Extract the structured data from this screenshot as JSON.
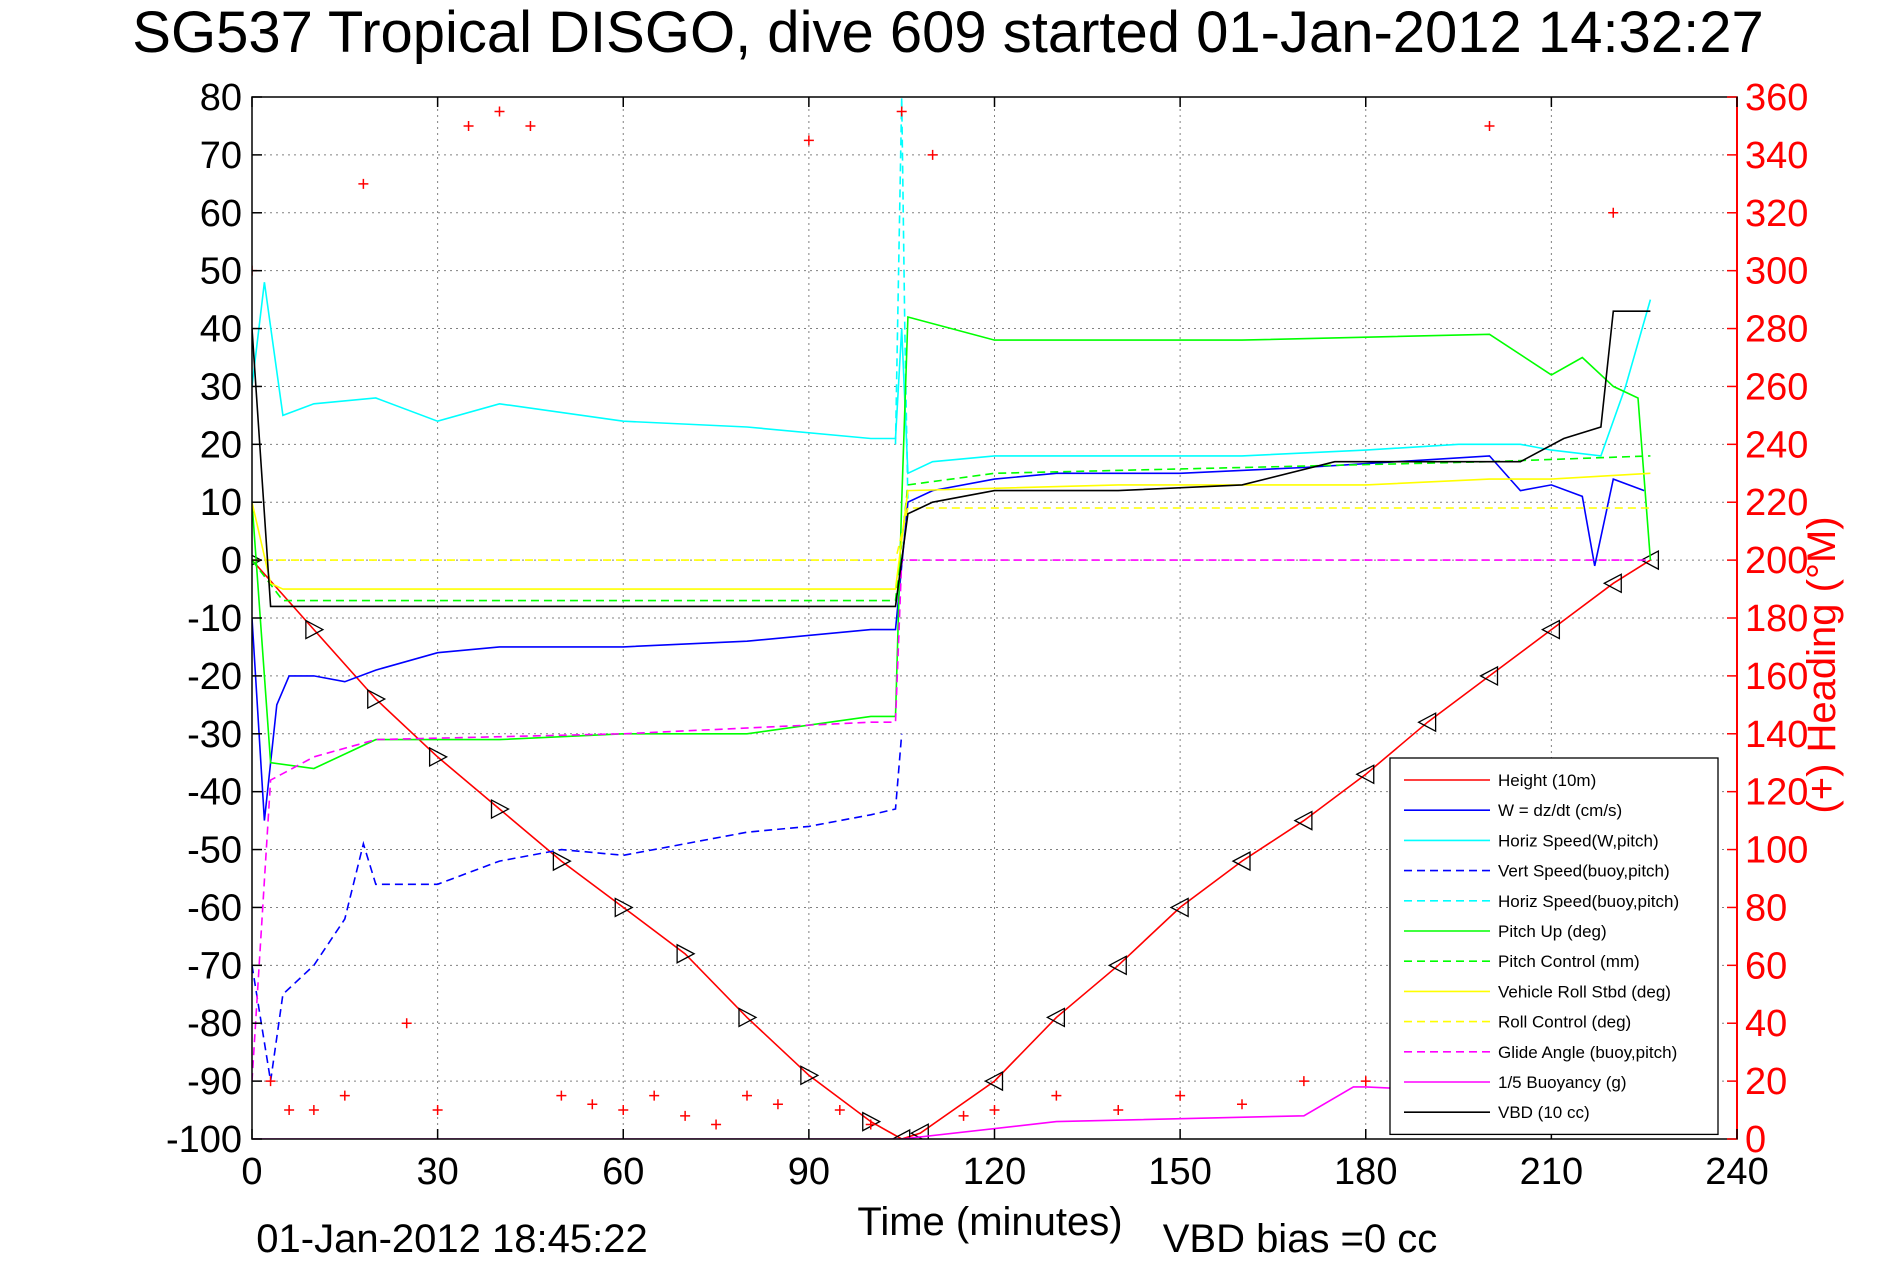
{
  "chart_data": {
    "type": "line",
    "title": "SG537 Tropical DISGO, dive 609 started 01-Jan-2012 14:32:27",
    "xlabel": "Time (minutes)",
    "ylabel": "",
    "y2label": "(+) Heading (°M)",
    "footer_left": "01-Jan-2012 18:45:22",
    "footer_right": "VBD bias =0 cc",
    "xlim": [
      0,
      240
    ],
    "ylim": [
      -100,
      80
    ],
    "y2lim": [
      0,
      360
    ],
    "xticks": [
      "0",
      "30",
      "60",
      "90",
      "120",
      "150",
      "180",
      "210",
      "240"
    ],
    "yticks": [
      "80",
      "70",
      "60",
      "50",
      "40",
      "30",
      "20",
      "10",
      "0",
      "-10",
      "-20",
      "-30",
      "-40",
      "-50",
      "-60",
      "-70",
      "-80",
      "-90",
      "-100"
    ],
    "y2ticks": [
      "360",
      "340",
      "320",
      "300",
      "280",
      "260",
      "240",
      "220",
      "200",
      "180",
      "160",
      "140",
      "120",
      "100",
      "80",
      "60",
      "40",
      "20",
      "0"
    ],
    "grid": true,
    "legend_position": "bottom-right",
    "colors": {
      "axis": "#000000",
      "right_axis": "#ff0000",
      "grid": "#808080"
    },
    "series": [
      {
        "name": "Height (10m)",
        "color": "#ff0000",
        "style": "solid",
        "x": [
          0,
          10,
          20,
          30,
          40,
          50,
          60,
          70,
          80,
          90,
          100,
          105,
          108,
          120,
          130,
          140,
          150,
          160,
          170,
          180,
          190,
          200,
          210,
          220,
          226
        ],
        "y": [
          0,
          -12,
          -24,
          -34,
          -43,
          -52,
          -60,
          -68,
          -79,
          -89,
          -97,
          -100,
          -99,
          -90,
          -79,
          -70,
          -60,
          -52,
          -45,
          -37,
          -28,
          -20,
          -12,
          -4,
          0
        ]
      },
      {
        "name": "W = dz/dt (cm/s)",
        "color": "#0000ff",
        "style": "solid",
        "x": [
          0,
          2,
          4,
          6,
          10,
          15,
          20,
          30,
          40,
          60,
          80,
          100,
          104,
          106,
          110,
          120,
          130,
          150,
          170,
          185,
          200,
          205,
          210,
          215,
          217,
          220,
          225
        ],
        "y": [
          -10,
          -45,
          -25,
          -20,
          -20,
          -21,
          -19,
          -16,
          -15,
          -15,
          -14,
          -12,
          -12,
          10,
          12,
          14,
          15,
          15,
          16,
          17,
          18,
          12,
          13,
          11,
          -1,
          14,
          12
        ]
      },
      {
        "name": "Horiz Speed(W,pitch)",
        "color": "#00ffff",
        "style": "solid",
        "x": [
          0,
          2,
          5,
          10,
          20,
          30,
          40,
          60,
          80,
          100,
          104,
          105,
          106,
          110,
          120,
          140,
          160,
          180,
          195,
          205,
          210,
          218,
          222,
          226
        ],
        "y": [
          30,
          48,
          25,
          27,
          28,
          24,
          27,
          24,
          23,
          21,
          21,
          40,
          15,
          17,
          18,
          18,
          18,
          19,
          20,
          20,
          19,
          18,
          30,
          45
        ]
      },
      {
        "name": "Vert Speed(buoy,pitch)",
        "color": "#0000ff",
        "style": "dashed",
        "x": [
          0,
          3,
          5,
          10,
          15,
          18,
          20,
          30,
          40,
          50,
          60,
          80,
          90,
          100,
          104,
          105
        ],
        "y": [
          -70,
          -90,
          -75,
          -70,
          -62,
          -49,
          -56,
          -56,
          -52,
          -50,
          -51,
          -47,
          -46,
          -44,
          -43,
          -30
        ]
      },
      {
        "name": "Horiz Speed(buoy,pitch)",
        "color": "#00ffff",
        "style": "dashed",
        "x": [
          104,
          105,
          105.5,
          106
        ],
        "y": [
          20,
          80,
          40,
          10
        ]
      },
      {
        "name": "Pitch Up (deg)",
        "color": "#00ff00",
        "style": "solid",
        "x": [
          0,
          3,
          10,
          20,
          40,
          60,
          80,
          100,
          104,
          105,
          106,
          120,
          160,
          200,
          210,
          215,
          220,
          224,
          226
        ],
        "y": [
          10,
          -35,
          -36,
          -31,
          -31,
          -30,
          -30,
          -27,
          -27,
          10,
          42,
          38,
          38,
          39,
          32,
          35,
          30,
          28,
          0
        ]
      },
      {
        "name": "Pitch Control (mm)",
        "color": "#00ff00",
        "style": "dashed",
        "x": [
          0,
          5,
          20,
          60,
          100,
          104,
          106,
          120,
          160,
          200,
          226
        ],
        "y": [
          0,
          -7,
          -7,
          -7,
          -7,
          -7,
          13,
          15,
          16,
          17,
          18
        ]
      },
      {
        "name": "Vehicle Roll Stbd (deg)",
        "color": "#ffff00",
        "style": "solid",
        "x": [
          0,
          3,
          5,
          30,
          60,
          104,
          106,
          140,
          180,
          200,
          210,
          226
        ],
        "y": [
          10,
          -4,
          -5,
          -5,
          -5,
          -5,
          12,
          13,
          13,
          14,
          14,
          15
        ]
      },
      {
        "name": "Roll Control (deg)",
        "color": "#ffff00",
        "style": "dashed",
        "x": [
          0,
          5,
          60,
          104,
          106,
          160,
          200,
          226
        ],
        "y": [
          0,
          0,
          0,
          0,
          9,
          9,
          9,
          9
        ]
      },
      {
        "name": "Glide Angle (buoy,pitch)",
        "color": "#ff00ff",
        "style": "dashed",
        "x": [
          0,
          3,
          10,
          20,
          60,
          100,
          104,
          105,
          226
        ],
        "y": [
          -90,
          -38,
          -34,
          -31,
          -30,
          -28,
          -28,
          0,
          0
        ]
      },
      {
        "name": "1/5 Buoyancy (g)",
        "color": "#ff00ff",
        "style": "solid",
        "x": [
          0,
          105,
          130,
          170,
          178,
          180,
          200
        ],
        "y": [
          -100,
          -100,
          -97,
          -96,
          -91,
          -91,
          -92
        ]
      },
      {
        "name": "VBD (10 cc)",
        "color": "#000000",
        "style": "solid",
        "x": [
          0,
          3,
          10,
          60,
          104,
          106,
          110,
          120,
          140,
          160,
          175,
          195,
          205,
          212,
          218,
          220,
          226
        ],
        "y": [
          40,
          -8,
          -8,
          -8,
          -8,
          8,
          10,
          12,
          12,
          13,
          17,
          17,
          17,
          21,
          23,
          43,
          43
        ]
      },
      {
        "name": "Heading",
        "color": "#ff0000",
        "style": "markers",
        "axis": "right",
        "x": [
          0,
          3,
          6,
          10,
          15,
          18,
          25,
          30,
          35,
          40,
          45,
          50,
          55,
          60,
          65,
          70,
          75,
          80,
          85,
          90,
          95,
          100,
          105,
          110,
          115,
          120,
          130,
          140,
          150,
          160,
          170,
          180,
          190,
          200,
          210,
          215,
          220,
          224
        ],
        "y": [
          300,
          20,
          10,
          10,
          15,
          330,
          40,
          10,
          350,
          355,
          350,
          15,
          12,
          10,
          15,
          8,
          5,
          15,
          12,
          345,
          10,
          5,
          355,
          340,
          8,
          10,
          15,
          10,
          15,
          12,
          20,
          20,
          20,
          350,
          20,
          30,
          320,
          40
        ]
      }
    ]
  }
}
